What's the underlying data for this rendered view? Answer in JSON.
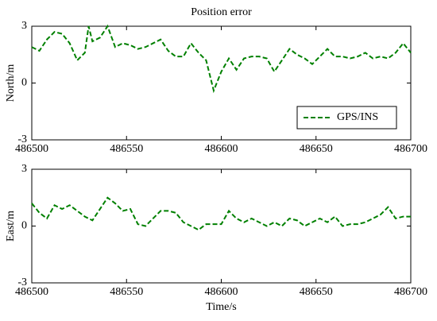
{
  "chart_data": [
    {
      "type": "line",
      "title": "Position error",
      "ylabel": "North/m",
      "x": [
        486500,
        486504,
        486508,
        486512,
        486516,
        486520,
        486524,
        486528,
        486530,
        486532,
        486536,
        486540,
        486544,
        486548,
        486552,
        486556,
        486560,
        486564,
        486568,
        486572,
        486576,
        486580,
        486584,
        486588,
        486592,
        486596,
        486600,
        486604,
        486608,
        486612,
        486616,
        486620,
        486624,
        486628,
        486632,
        486636,
        486640,
        486644,
        486648,
        486652,
        486656,
        486660,
        486664,
        486668,
        486672,
        486676,
        486680,
        486684,
        486688,
        486692,
        486696,
        486700
      ],
      "series": [
        {
          "name": "GPS/INS",
          "color": "#008000",
          "values": [
            1.9,
            1.7,
            2.3,
            2.7,
            2.6,
            2.1,
            1.2,
            1.6,
            3.0,
            2.2,
            2.4,
            3.0,
            1.9,
            2.1,
            2.0,
            1.8,
            1.9,
            2.1,
            2.3,
            1.7,
            1.4,
            1.4,
            2.1,
            1.6,
            1.2,
            -0.4,
            0.6,
            1.3,
            0.7,
            1.3,
            1.4,
            1.4,
            1.3,
            0.6,
            1.2,
            1.8,
            1.5,
            1.3,
            1.0,
            1.4,
            1.8,
            1.4,
            1.4,
            1.3,
            1.4,
            1.6,
            1.3,
            1.4,
            1.3,
            1.6,
            2.1,
            1.6
          ]
        }
      ],
      "xlim": [
        486500,
        486700
      ],
      "xticks": [
        486500,
        486550,
        486600,
        486650,
        486700
      ],
      "ylim": [
        -3,
        3
      ],
      "yticks": [
        -3,
        0,
        3
      ],
      "legend": "lower right",
      "dashed": true
    },
    {
      "type": "line",
      "xlabel": "Time/s",
      "ylabel": "East/m",
      "x": [
        486500,
        486504,
        486508,
        486512,
        486516,
        486520,
        486524,
        486528,
        486532,
        486536,
        486540,
        486544,
        486548,
        486552,
        486556,
        486560,
        486564,
        486568,
        486572,
        486576,
        486580,
        486584,
        486588,
        486592,
        486596,
        486600,
        486604,
        486608,
        486612,
        486616,
        486620,
        486624,
        486628,
        486632,
        486636,
        486640,
        486644,
        486648,
        486652,
        486656,
        486660,
        486664,
        486668,
        486672,
        486676,
        486680,
        486684,
        486688,
        486692,
        486696,
        486700
      ],
      "series": [
        {
          "color": "#008000",
          "values": [
            1.2,
            0.7,
            0.4,
            1.1,
            0.9,
            1.1,
            0.8,
            0.5,
            0.3,
            0.9,
            1.5,
            1.2,
            0.8,
            0.9,
            0.1,
            0.0,
            0.4,
            0.8,
            0.8,
            0.7,
            0.2,
            0.0,
            -0.2,
            0.1,
            0.1,
            0.1,
            0.8,
            0.4,
            0.2,
            0.4,
            0.2,
            0.0,
            0.2,
            0.0,
            0.4,
            0.3,
            0.0,
            0.2,
            0.4,
            0.2,
            0.5,
            0.0,
            0.1,
            0.1,
            0.2,
            0.4,
            0.6,
            1.0,
            0.4,
            0.5,
            0.5
          ]
        }
      ],
      "xlim": [
        486500,
        486700
      ],
      "xticks": [
        486500,
        486550,
        486600,
        486650,
        486700
      ],
      "ylim": [
        -3,
        3
      ],
      "yticks": [
        -3,
        0,
        3
      ],
      "dashed": true
    }
  ]
}
